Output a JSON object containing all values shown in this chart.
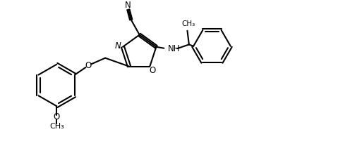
{
  "bg_color": "#ffffff",
  "line_color": "#000000",
  "line_width": 1.5,
  "fig_width": 4.96,
  "fig_height": 2.18,
  "dpi": 100,
  "xlim": [
    0,
    10
  ],
  "ylim": [
    0,
    4.4
  ]
}
